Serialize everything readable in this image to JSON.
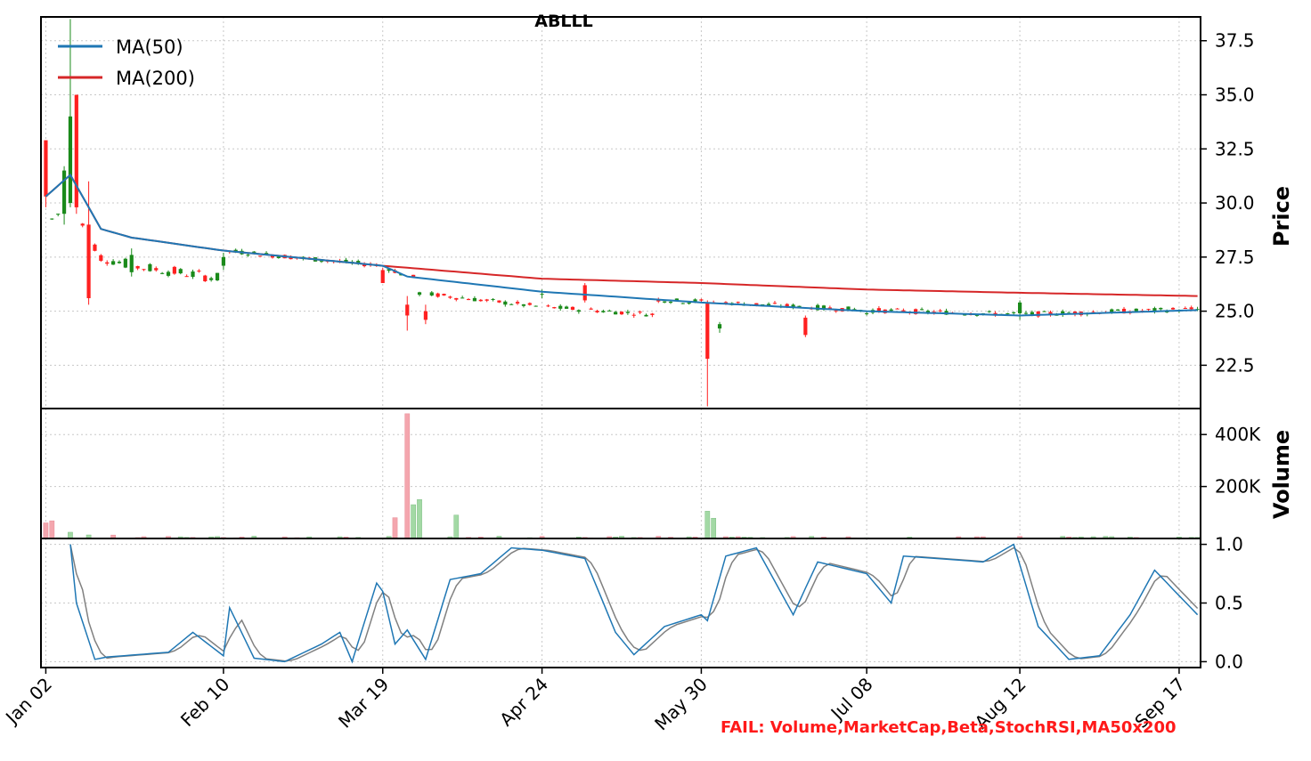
{
  "chart_data": {
    "type": "candlestick",
    "title": "ABLLL",
    "x_ticks": [
      "Jan 02",
      "Feb 10",
      "Mar 19",
      "Apr 24",
      "May 30",
      "Jul 08",
      "Aug 12",
      "Sep 17"
    ],
    "price_panel": {
      "ylabel": "Price",
      "ylim": [
        20.5,
        38.6
      ],
      "yticks": [
        "22.5",
        "25.0",
        "27.5",
        "30.0",
        "32.5",
        "35.0",
        "37.5"
      ],
      "grid": true,
      "legend_position": "top-left",
      "legend": [
        {
          "name": "MA(50)",
          "color": "#1f77b4"
        },
        {
          "name": "MA(200)",
          "color": "#d62728"
        }
      ],
      "candles_keypoints": [
        {
          "x": "Jan 02",
          "open": 32.9,
          "high": 32.9,
          "low": 29.8,
          "close": 30.3
        },
        {
          "x": "Jan 05",
          "open": 29.5,
          "high": 31.7,
          "low": 29.0,
          "close": 31.5
        },
        {
          "x": "Jan 08",
          "open": 30.0,
          "high": 38.5,
          "low": 29.8,
          "close": 34.0
        },
        {
          "x": "Jan 09",
          "open": 35.0,
          "high": 35.0,
          "low": 29.5,
          "close": 29.8
        },
        {
          "x": "Jan 11",
          "open": 29.0,
          "high": 31.0,
          "low": 25.3,
          "close": 25.6
        },
        {
          "x": "Jan 22",
          "open": 26.8,
          "high": 27.9,
          "low": 26.6,
          "close": 27.6
        },
        {
          "x": "Feb 10",
          "open": 27.1,
          "high": 27.7,
          "low": 26.9,
          "close": 27.5
        },
        {
          "x": "Mar 19",
          "open": 26.9,
          "high": 27.0,
          "low": 26.3,
          "close": 26.3
        },
        {
          "x": "Mar 25",
          "open": 25.3,
          "high": 25.7,
          "low": 24.1,
          "close": 24.8
        },
        {
          "x": "Mar 28",
          "open": 25.0,
          "high": 25.3,
          "low": 24.4,
          "close": 24.6
        },
        {
          "x": "Apr 24",
          "open": 25.8,
          "high": 26.0,
          "low": 25.6,
          "close": 25.8
        },
        {
          "x": "May 03",
          "open": 26.2,
          "high": 26.3,
          "low": 25.4,
          "close": 25.5
        },
        {
          "x": "May 31",
          "open": 25.4,
          "high": 25.5,
          "low": 20.6,
          "close": 22.8
        },
        {
          "x": "Jun 04",
          "open": 24.2,
          "high": 24.5,
          "low": 24.0,
          "close": 24.4
        },
        {
          "x": "Jun 24",
          "open": 24.7,
          "high": 24.8,
          "low": 23.8,
          "close": 23.9
        },
        {
          "x": "Jul 08",
          "open": 24.9,
          "high": 25.0,
          "low": 24.8,
          "close": 24.9
        },
        {
          "x": "Aug 12",
          "open": 24.9,
          "high": 25.5,
          "low": 24.6,
          "close": 25.4
        },
        {
          "x": "Sep 20",
          "open": 25.1,
          "high": 25.2,
          "low": 25.0,
          "close": 25.1
        }
      ],
      "ma50_keypoints": [
        {
          "x": "Jan 02",
          "y": 30.3
        },
        {
          "x": "Jan 08",
          "y": 31.3
        },
        {
          "x": "Jan 15",
          "y": 28.8
        },
        {
          "x": "Jan 22",
          "y": 28.4
        },
        {
          "x": "Feb 10",
          "y": 27.8
        },
        {
          "x": "Mar 19",
          "y": 27.1
        },
        {
          "x": "Mar 25",
          "y": 26.6
        },
        {
          "x": "Apr 24",
          "y": 25.9
        },
        {
          "x": "May 30",
          "y": 25.4
        },
        {
          "x": "Jul 08",
          "y": 25.0
        },
        {
          "x": "Aug 12",
          "y": 24.8
        },
        {
          "x": "Sep 20",
          "y": 25.05
        }
      ],
      "ma200_keypoints": [
        {
          "x": "Jan 02",
          "y": 30.3
        },
        {
          "x": "Jan 08",
          "y": 31.3
        },
        {
          "x": "Jan 15",
          "y": 28.8
        },
        {
          "x": "Jan 22",
          "y": 28.4
        },
        {
          "x": "Feb 10",
          "y": 27.8
        },
        {
          "x": "Mar 19",
          "y": 27.1
        },
        {
          "x": "Apr 24",
          "y": 26.5
        },
        {
          "x": "May 30",
          "y": 26.3
        },
        {
          "x": "Jul 08",
          "y": 26.0
        },
        {
          "x": "Aug 12",
          "y": 25.85
        },
        {
          "x": "Sep 20",
          "y": 25.7
        }
      ]
    },
    "volume_panel": {
      "ylabel": "Volume",
      "ylim": [
        0,
        500000
      ],
      "yticks": [
        "200K",
        "400K"
      ],
      "tick_values": [
        200000,
        400000
      ],
      "peaks": [
        {
          "x": "Jan 02",
          "value": 60000
        },
        {
          "x": "Jan 03",
          "value": 68000
        },
        {
          "x": "Mar 21",
          "value": 80000
        },
        {
          "x": "Mar 25",
          "value": 480000
        },
        {
          "x": "Mar 26",
          "value": 130000
        },
        {
          "x": "Mar 27",
          "value": 150000
        },
        {
          "x": "Apr 04",
          "value": 90000
        },
        {
          "x": "May 31",
          "value": 105000
        },
        {
          "x": "Jun 03",
          "value": 78000
        }
      ]
    },
    "stoch_panel": {
      "ylim": [
        -0.05,
        1.05
      ],
      "yticks": [
        "0.0",
        "0.5",
        "1.0"
      ],
      "series": [
        {
          "name": "",
          "color": "#1f77b4"
        },
        {
          "name": "",
          "color": "#808080"
        }
      ],
      "keypoints": [
        {
          "x": "Jan 08",
          "k": 1.0
        },
        {
          "x": "Jan 09",
          "k": 0.5
        },
        {
          "x": "Jan 12",
          "k": 0.02
        },
        {
          "x": "Jan 16",
          "k": 0.04
        },
        {
          "x": "Jan 30",
          "k": 0.08
        },
        {
          "x": "Feb 05",
          "k": 0.25
        },
        {
          "x": "Feb 10",
          "k": 0.05
        },
        {
          "x": "Feb 13",
          "k": 0.46
        },
        {
          "x": "Feb 17",
          "k": 0.03
        },
        {
          "x": "Feb 26",
          "k": 0.0
        },
        {
          "x": "Mar 05",
          "k": 0.15
        },
        {
          "x": "Mar 08",
          "k": 0.25
        },
        {
          "x": "Mar 12",
          "k": 0.0
        },
        {
          "x": "Mar 17",
          "k": 0.67
        },
        {
          "x": "Mar 19",
          "k": 0.6
        },
        {
          "x": "Mar 21",
          "k": 0.15
        },
        {
          "x": "Mar 25",
          "k": 0.27
        },
        {
          "x": "Mar 28",
          "k": 0.02
        },
        {
          "x": "Apr 03",
          "k": 0.7
        },
        {
          "x": "Apr 10",
          "k": 0.75
        },
        {
          "x": "Apr 17",
          "k": 0.97
        },
        {
          "x": "Apr 24",
          "k": 0.95
        },
        {
          "x": "May 03",
          "k": 0.88
        },
        {
          "x": "May 10",
          "k": 0.25
        },
        {
          "x": "May 15",
          "k": 0.06
        },
        {
          "x": "May 22",
          "k": 0.3
        },
        {
          "x": "May 30",
          "k": 0.4
        },
        {
          "x": "May 31",
          "k": 0.35
        },
        {
          "x": "Jun 05",
          "k": 0.9
        },
        {
          "x": "Jun 12",
          "k": 0.97
        },
        {
          "x": "Jun 20",
          "k": 0.4
        },
        {
          "x": "Jun 26",
          "k": 0.85
        },
        {
          "x": "Jul 08",
          "k": 0.75
        },
        {
          "x": "Jul 12",
          "k": 0.5
        },
        {
          "x": "Jul 16",
          "k": 0.9
        },
        {
          "x": "Aug 02",
          "k": 0.85
        },
        {
          "x": "Aug 09",
          "k": 1.0
        },
        {
          "x": "Aug 15",
          "k": 0.3
        },
        {
          "x": "Aug 22",
          "k": 0.02
        },
        {
          "x": "Aug 29",
          "k": 0.05
        },
        {
          "x": "Sep 05",
          "k": 0.4
        },
        {
          "x": "Sep 11",
          "k": 0.78
        },
        {
          "x": "Sep 20",
          "k": 0.4
        }
      ]
    }
  },
  "status_text": "FAIL: Volume,MarketCap,Beta,StochRSI,MA50x200",
  "colors": {
    "up_candle": "#1a8a1a",
    "down_candle": "#ff2020",
    "up_volume": "#a3d9a5",
    "down_volume": "#f4a6ae",
    "ma50": "#1f77b4",
    "ma200": "#d62728",
    "stoch_k": "#1f77b4",
    "stoch_d": "#808080",
    "status": "#ff1a1a"
  }
}
